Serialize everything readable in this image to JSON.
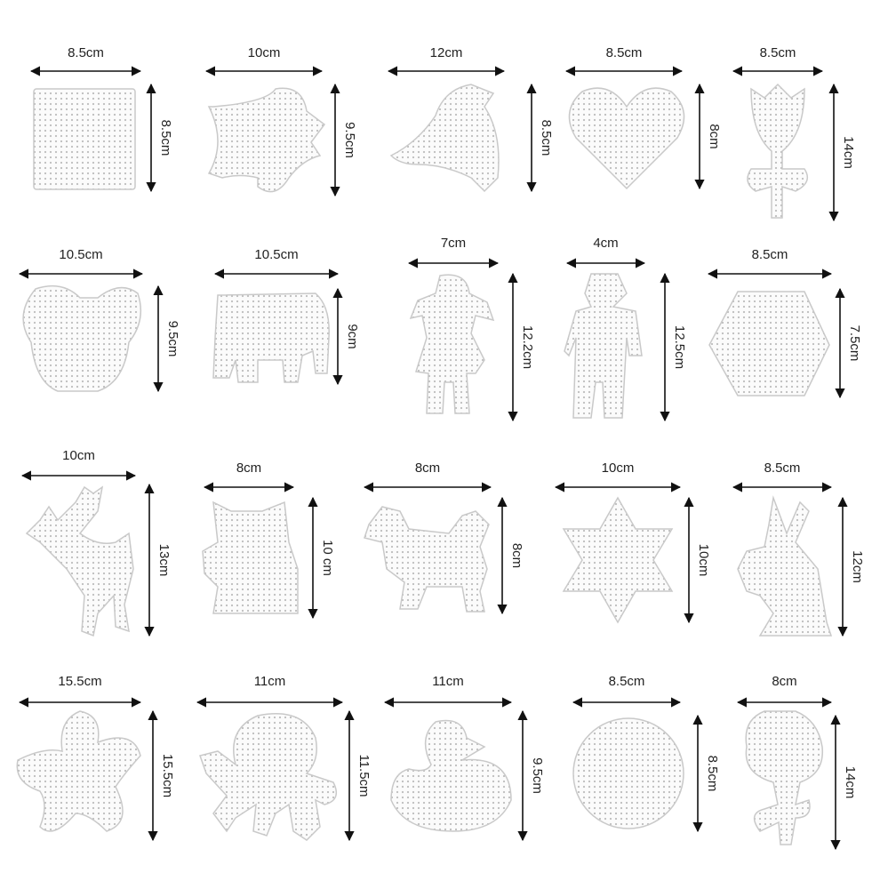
{
  "items": [
    {
      "width": "8.5cm",
      "height": "8.5cm"
    },
    {
      "width": "10cm",
      "height": "9.5cm"
    },
    {
      "width": "12cm",
      "height": "8.5cm"
    },
    {
      "width": "8.5cm",
      "height": "8cm"
    },
    {
      "width": "8.5cm",
      "height": "14cm"
    },
    {
      "width": "10.5cm",
      "height": "9.5cm"
    },
    {
      "width": "10.5cm",
      "height": "9cm"
    },
    {
      "width": "7cm",
      "height": "12.2cm"
    },
    {
      "width": "4cm",
      "height": "12.5cm"
    },
    {
      "width": "8.5cm",
      "height": "7.5cm"
    },
    {
      "width": "10cm",
      "height": "13cm"
    },
    {
      "width": "8cm",
      "height": "10 cm"
    },
    {
      "width": "8cm",
      "height": "8cm"
    },
    {
      "width": "10cm",
      "height": "10cm"
    },
    {
      "width": "8.5cm",
      "height": "12cm"
    },
    {
      "width": "15.5cm",
      "height": "15.5cm"
    },
    {
      "width": "11cm",
      "height": "11.5cm"
    },
    {
      "width": "11cm",
      "height": "9.5cm"
    },
    {
      "width": "8.5cm",
      "height": "8.5cm"
    },
    {
      "width": "8cm",
      "height": "14cm"
    }
  ]
}
